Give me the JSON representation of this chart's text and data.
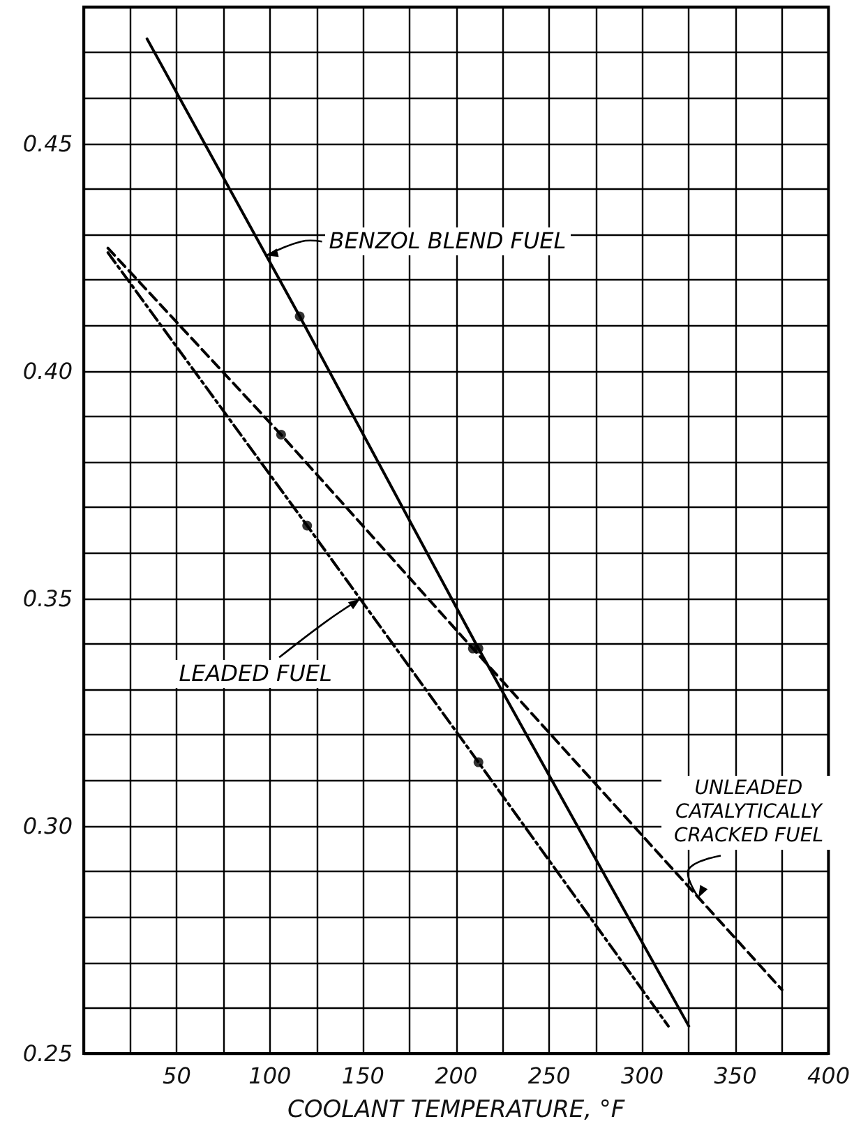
{
  "chart_data": {
    "type": "line",
    "xlabel": "COOLANT TEMPERATURE, °F",
    "xlim": [
      0,
      400
    ],
    "xticks": [
      50,
      100,
      150,
      200,
      250,
      300,
      350,
      400
    ],
    "ylim": [
      0.25,
      0.48
    ],
    "yticks": [
      {
        "value": 0.25,
        "label": "0.25"
      },
      {
        "value": 0.3,
        "label": "0.30"
      },
      {
        "value": 0.35,
        "label": "0.35"
      },
      {
        "value": 0.4,
        "label": "0.40"
      },
      {
        "value": 0.45,
        "label": "0.45"
      }
    ],
    "grid": true,
    "marker": "none",
    "series": [
      {
        "name": "BENZOL BLEND FUEL",
        "color": "#000000",
        "line_style": "solid",
        "x": [
          34,
          116,
          212,
          325
        ],
        "values": [
          0.473,
          0.412,
          0.339,
          0.256
        ]
      },
      {
        "name": "UNLEADED CATALYTICALLY CRACKED FUEL",
        "color": "#000000",
        "line_style": "dashed",
        "x": [
          13,
          106,
          209,
          375
        ],
        "values": [
          0.427,
          0.386,
          0.339,
          0.264
        ]
      },
      {
        "name": "LEADED FUEL",
        "color": "#000000",
        "line_style": "dashdot",
        "x": [
          13,
          120,
          212,
          314
        ],
        "values": [
          0.426,
          0.366,
          0.314,
          0.256
        ]
      },
      {
        "type": "scatter",
        "marker": "circle",
        "color": "#000000",
        "x": [
          116,
          212
        ],
        "values": [
          0.412,
          0.339
        ]
      },
      {
        "type": "scatter",
        "marker": "circle",
        "color": "#000000",
        "x": [
          106,
          209
        ],
        "values": [
          0.386,
          0.339
        ]
      },
      {
        "type": "scatter",
        "marker": "circle",
        "color": "#000000",
        "x": [
          120,
          212
        ],
        "values": [
          0.366,
          0.314
        ]
      }
    ]
  }
}
